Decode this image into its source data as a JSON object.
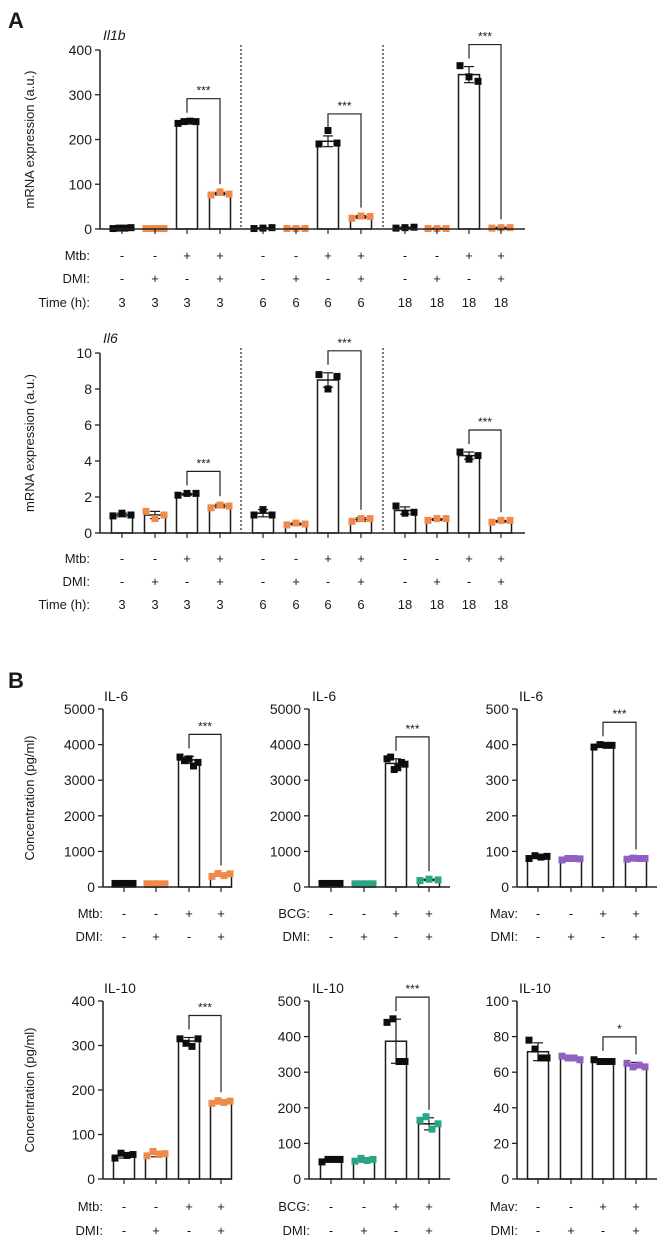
{
  "colors": {
    "black": "#0d0d0d",
    "orange": "#f08a4b",
    "green": "#2aa585",
    "purple": "#8f5fc2"
  },
  "panels": [
    {
      "label": "A"
    },
    {
      "label": "B"
    }
  ],
  "chart_data": [
    {
      "id": "A-Il1b",
      "panel": "A",
      "type": "bar",
      "title": "Il1b",
      "title_italic": true,
      "ylabel": "mRNA expression (a.u.)",
      "ylim": [
        0,
        400
      ],
      "yticks": [
        "0",
        "100",
        "200",
        "300",
        "400"
      ],
      "row_labels": [
        "Mtb:",
        "DMI:",
        "Time (h):"
      ],
      "groups": [
        {
          "rows": [
            [
              "-",
              "-",
              "+",
              "+"
            ],
            [
              "-",
              "+",
              "-",
              "+"
            ],
            [
              "3",
              "3",
              "3",
              "3"
            ]
          ],
          "bars": [
            {
              "value": 2,
              "err": 1,
              "color": "black",
              "points": [
                1,
                2,
                2,
                3
              ]
            },
            {
              "value": 1,
              "err": 0.5,
              "color": "orange",
              "points": [
                1,
                1,
                1,
                1
              ]
            },
            {
              "value": 239,
              "err": 3,
              "color": "black",
              "points": [
                236,
                240,
                241,
                240
              ]
            },
            {
              "value": 79,
              "err": 3,
              "color": "orange",
              "points": [
                76,
                83,
                78
              ]
            }
          ],
          "sig": {
            "from": 2,
            "to": 3,
            "label": "***"
          }
        },
        {
          "rows": [
            [
              "-",
              "-",
              "+",
              "+"
            ],
            [
              "-",
              "+",
              "-",
              "+"
            ],
            [
              "6",
              "6",
              "6",
              "6"
            ]
          ],
          "bars": [
            {
              "value": 2,
              "err": 1,
              "color": "black",
              "points": [
                1,
                2,
                3
              ]
            },
            {
              "value": 1,
              "err": 0.5,
              "color": "orange",
              "points": [
                1,
                1,
                1
              ]
            },
            {
              "value": 196,
              "err": 12,
              "color": "black",
              "points": [
                190,
                220,
                192
              ]
            },
            {
              "value": 27,
              "err": 3,
              "color": "orange",
              "points": [
                24,
                29,
                28
              ]
            }
          ],
          "sig": {
            "from": 2,
            "to": 3,
            "label": "***"
          }
        },
        {
          "rows": [
            [
              "-",
              "-",
              "+",
              "+"
            ],
            [
              "-",
              "+",
              "-",
              "+"
            ],
            [
              "18",
              "18",
              "18",
              "18"
            ]
          ],
          "bars": [
            {
              "value": 3,
              "err": 1,
              "color": "black",
              "points": [
                2,
                3,
                4
              ]
            },
            {
              "value": 1,
              "err": 0.5,
              "color": "orange",
              "points": [
                1,
                1,
                1
              ]
            },
            {
              "value": 345,
              "err": 18,
              "color": "black",
              "points": [
                365,
                340,
                330
              ]
            },
            {
              "value": 3,
              "err": 1,
              "color": "orange",
              "points": [
                2,
                3,
                3
              ]
            }
          ],
          "sig": {
            "from": 2,
            "to": 3,
            "label": "***"
          }
        }
      ]
    },
    {
      "id": "A-Il6",
      "panel": "A",
      "type": "bar",
      "title": "Il6",
      "title_italic": true,
      "ylabel": "mRNA expression (a.u.)",
      "ylim": [
        0,
        10
      ],
      "yticks": [
        "0",
        "2",
        "4",
        "6",
        "8",
        "10"
      ],
      "row_labels": [
        "Mtb:",
        "DMI:",
        "Time (h):"
      ],
      "groups": [
        {
          "rows": [
            [
              "-",
              "-",
              "+",
              "+"
            ],
            [
              "-",
              "+",
              "-",
              "+"
            ],
            [
              "3",
              "3",
              "3",
              "3"
            ]
          ],
          "bars": [
            {
              "value": 1.0,
              "err": 0.1,
              "color": "black",
              "points": [
                0.95,
                1.1,
                1.0
              ]
            },
            {
              "value": 1.0,
              "err": 0.2,
              "color": "orange",
              "points": [
                1.2,
                0.8,
                1.0
              ]
            },
            {
              "value": 2.15,
              "err": 0.05,
              "color": "black",
              "points": [
                2.1,
                2.2,
                2.2
              ]
            },
            {
              "value": 1.5,
              "err": 0.1,
              "color": "orange",
              "points": [
                1.4,
                1.55,
                1.5
              ]
            }
          ],
          "sig": {
            "from": 2,
            "to": 3,
            "label": "***"
          }
        },
        {
          "rows": [
            [
              "-",
              "-",
              "+",
              "+"
            ],
            [
              "-",
              "+",
              "-",
              "+"
            ],
            [
              "6",
              "6",
              "6",
              "6"
            ]
          ],
          "bars": [
            {
              "value": 1.1,
              "err": 0.2,
              "color": "black",
              "points": [
                1.0,
                1.3,
                1.0
              ]
            },
            {
              "value": 0.5,
              "err": 0.05,
              "color": "orange",
              "points": [
                0.45,
                0.55,
                0.5
              ]
            },
            {
              "value": 8.5,
              "err": 0.4,
              "color": "black",
              "points": [
                8.8,
                8.0,
                8.7
              ]
            },
            {
              "value": 0.75,
              "err": 0.1,
              "color": "orange",
              "points": [
                0.65,
                0.8,
                0.8
              ]
            }
          ],
          "sig": {
            "from": 2,
            "to": 3,
            "label": "***"
          }
        },
        {
          "rows": [
            [
              "-",
              "-",
              "+",
              "+"
            ],
            [
              "-",
              "+",
              "-",
              "+"
            ],
            [
              "18",
              "18",
              "18",
              "18"
            ]
          ],
          "bars": [
            {
              "value": 1.25,
              "err": 0.2,
              "color": "black",
              "points": [
                1.5,
                1.1,
                1.15
              ]
            },
            {
              "value": 0.75,
              "err": 0.05,
              "color": "orange",
              "points": [
                0.7,
                0.8,
                0.8
              ]
            },
            {
              "value": 4.3,
              "err": 0.2,
              "color": "black",
              "points": [
                4.5,
                4.1,
                4.3
              ]
            },
            {
              "value": 0.65,
              "err": 0.05,
              "color": "orange",
              "points": [
                0.6,
                0.7,
                0.7
              ]
            }
          ],
          "sig": {
            "from": 2,
            "to": 3,
            "label": "***"
          }
        }
      ]
    },
    {
      "id": "B-IL6-Mtb",
      "panel": "B",
      "type": "bar",
      "title": "IL-6",
      "ylabel": "Concentration (pg/ml)",
      "ylim": [
        0,
        5000
      ],
      "yticks": [
        "0",
        "1000",
        "2000",
        "3000",
        "4000",
        "5000"
      ],
      "row_labels": [
        "Mtb:",
        "DMI:"
      ],
      "groups": [
        {
          "rows": [
            [
              "-",
              "-",
              "+",
              "+"
            ],
            [
              "-",
              "+",
              "-",
              "+"
            ]
          ],
          "bars": [
            {
              "value": 100,
              "err": 10,
              "color": "black",
              "points": [
                100,
                100,
                100,
                100
              ]
            },
            {
              "value": 90,
              "err": 10,
              "color": "orange",
              "points": [
                90,
                90,
                90,
                90
              ]
            },
            {
              "value": 3570,
              "err": 100,
              "color": "black",
              "points": [
                3650,
                3550,
                3600,
                3400,
                3500
              ]
            },
            {
              "value": 340,
              "err": 40,
              "color": "orange",
              "points": [
                300,
                380,
                320,
                370
              ]
            }
          ],
          "sig": {
            "from": 2,
            "to": 3,
            "label": "***"
          }
        }
      ]
    },
    {
      "id": "B-IL6-BCG",
      "panel": "B",
      "type": "bar",
      "title": "IL-6",
      "ylabel": "",
      "ylim": [
        0,
        5000
      ],
      "yticks": [
        "0",
        "1000",
        "2000",
        "3000",
        "4000",
        "5000"
      ],
      "row_labels": [
        "BCG:",
        "DMI:"
      ],
      "groups": [
        {
          "rows": [
            [
              "-",
              "-",
              "+",
              "+"
            ],
            [
              "-",
              "+",
              "-",
              "+"
            ]
          ],
          "bars": [
            {
              "value": 100,
              "err": 10,
              "color": "black",
              "points": [
                100,
                100,
                100,
                100
              ]
            },
            {
              "value": 90,
              "err": 10,
              "color": "green",
              "points": [
                90,
                90,
                90,
                90
              ]
            },
            {
              "value": 3470,
              "err": 130,
              "color": "black",
              "points": [
                3600,
                3650,
                3300,
                3350,
                3500,
                3450
              ]
            },
            {
              "value": 200,
              "err": 20,
              "color": "green",
              "points": [
                180,
                220,
                200
              ]
            }
          ],
          "sig": {
            "from": 2,
            "to": 3,
            "label": "***"
          }
        }
      ]
    },
    {
      "id": "B-IL6-Mav",
      "panel": "B",
      "type": "bar",
      "title": "IL-6",
      "ylabel": "",
      "ylim": [
        0,
        500
      ],
      "yticks": [
        "0",
        "100",
        "200",
        "300",
        "400",
        "500"
      ],
      "row_labels": [
        "Mav:",
        "DMI:"
      ],
      "groups": [
        {
          "rows": [
            [
              "-",
              "-",
              "+",
              "+"
            ],
            [
              "-",
              "+",
              "-",
              "+"
            ]
          ],
          "bars": [
            {
              "value": 84,
              "err": 4,
              "color": "black",
              "points": [
                80,
                88,
                84,
                86
              ]
            },
            {
              "value": 79,
              "err": 3,
              "color": "purple",
              "points": [
                76,
                80,
                80,
                79
              ]
            },
            {
              "value": 397,
              "err": 4,
              "color": "black",
              "points": [
                393,
                400,
                398,
                398
              ]
            },
            {
              "value": 80,
              "err": 3,
              "color": "purple",
              "points": [
                78,
                81,
                80,
                80
              ]
            }
          ],
          "sig": {
            "from": 2,
            "to": 3,
            "label": "***"
          }
        }
      ]
    },
    {
      "id": "B-IL10-Mtb",
      "panel": "B",
      "type": "bar",
      "title": "IL-10",
      "ylabel": "Concentration (pg/ml)",
      "ylim": [
        0,
        400
      ],
      "yticks": [
        "0",
        "100",
        "200",
        "300",
        "400"
      ],
      "row_labels": [
        "Mtb:",
        "DMI:"
      ],
      "groups": [
        {
          "rows": [
            [
              "-",
              "-",
              "+",
              "+"
            ],
            [
              "-",
              "+",
              "-",
              "+"
            ]
          ],
          "bars": [
            {
              "value": 53,
              "err": 6,
              "color": "black",
              "points": [
                47,
                58,
                53,
                55
              ]
            },
            {
              "value": 56,
              "err": 6,
              "color": "orange",
              "points": [
                52,
                62,
                55,
                57
              ]
            },
            {
              "value": 310,
              "err": 8,
              "color": "black",
              "points": [
                315,
                305,
                298,
                315
              ]
            },
            {
              "value": 173,
              "err": 4,
              "color": "orange",
              "points": [
                170,
                176,
                172,
                175
              ]
            }
          ],
          "sig": {
            "from": 2,
            "to": 3,
            "label": "***"
          }
        }
      ]
    },
    {
      "id": "B-IL10-BCG",
      "panel": "B",
      "type": "bar",
      "title": "IL-10",
      "ylabel": "",
      "ylim": [
        0,
        500
      ],
      "yticks": [
        "0",
        "100",
        "200",
        "300",
        "400",
        "500"
      ],
      "row_labels": [
        "BCG:",
        "DMI:"
      ],
      "groups": [
        {
          "rows": [
            [
              "-",
              "-",
              "+",
              "+"
            ],
            [
              "-",
              "+",
              "-",
              "+"
            ]
          ],
          "bars": [
            {
              "value": 53,
              "err": 5,
              "color": "black",
              "points": [
                48,
                55,
                55,
                55
              ]
            },
            {
              "value": 53,
              "err": 5,
              "color": "green",
              "points": [
                50,
                58,
                52,
                55
              ]
            },
            {
              "value": 387,
              "err": 62,
              "color": "black",
              "points": [
                440,
                450,
                330,
                330
              ]
            },
            {
              "value": 155,
              "err": 17,
              "color": "green",
              "points": [
                165,
                175,
                140,
                155
              ]
            }
          ],
          "sig": {
            "from": 2,
            "to": 3,
            "label": "***"
          }
        }
      ]
    },
    {
      "id": "B-IL10-Mav",
      "panel": "B",
      "type": "bar",
      "title": "IL-10",
      "ylabel": "",
      "ylim": [
        0,
        100
      ],
      "yticks": [
        "0",
        "20",
        "40",
        "60",
        "80",
        "100"
      ],
      "row_labels": [
        "Mav:",
        "DMI:"
      ],
      "groups": [
        {
          "rows": [
            [
              "-",
              "-",
              "+",
              "+"
            ],
            [
              "-",
              "+",
              "-",
              "+"
            ]
          ],
          "bars": [
            {
              "value": 71.5,
              "err": 5,
              "color": "black",
              "points": [
                78,
                73,
                68,
                68
              ]
            },
            {
              "value": 68,
              "err": 1.5,
              "color": "purple",
              "points": [
                69,
                68,
                68,
                67
              ]
            },
            {
              "value": 66.5,
              "err": 1,
              "color": "black",
              "points": [
                67,
                66,
                66,
                66
              ]
            },
            {
              "value": 64,
              "err": 1.5,
              "color": "purple",
              "points": [
                65,
                63,
                64,
                63
              ]
            }
          ],
          "sig": {
            "from": 2,
            "to": 3,
            "label": "*"
          }
        }
      ]
    }
  ]
}
